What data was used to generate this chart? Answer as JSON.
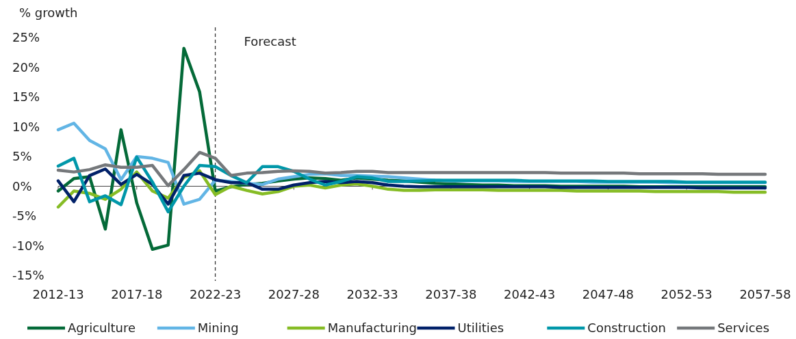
{
  "chart_data": {
    "type": "line",
    "ylabel": "% growth",
    "categories": [
      "2012-13",
      null,
      null,
      null,
      null,
      "2017-18",
      null,
      null,
      null,
      null,
      "2022-23",
      null,
      null,
      null,
      null,
      "2027-28",
      null,
      null,
      null,
      null,
      "2032-33",
      null,
      null,
      null,
      null,
      "2037-38",
      null,
      null,
      null,
      null,
      "2042-43",
      null,
      null,
      null,
      null,
      "2047-48",
      null,
      null,
      null,
      null,
      "2052-53",
      null,
      null,
      null,
      null,
      "2057-58"
    ],
    "series": [
      {
        "name": "Agriculture",
        "color": "#046a38",
        "values": [
          -0.8,
          1.3,
          1.6,
          -7.2,
          9.5,
          -2.8,
          -10.6,
          -9.9,
          23.2,
          15.9,
          -0.8,
          -0.1,
          0.3,
          0.5,
          0.9,
          1.2,
          1.4,
          1.3,
          1.0,
          1.4,
          1.2,
          1.0,
          0.9,
          0.7,
          0.5,
          0.4,
          0.3,
          0.2,
          0.2,
          0.1,
          0.1,
          0.1,
          0.0,
          0.0,
          0.0,
          0.0,
          0.0,
          -0.1,
          -0.1,
          -0.1,
          -0.1,
          -0.1,
          -0.1,
          -0.1,
          -0.1,
          -0.1
        ]
      },
      {
        "name": "Mining",
        "color": "#62b5e5",
        "values": [
          9.5,
          10.6,
          7.7,
          6.3,
          1.1,
          5.0,
          4.7,
          4.0,
          -3.0,
          -2.2,
          1.0,
          0.8,
          0.5,
          0.3,
          1.2,
          1.6,
          2.0,
          2.1,
          1.8,
          1.8,
          1.7,
          1.6,
          1.4,
          1.2,
          1.0,
          0.9,
          0.9,
          0.9,
          0.9,
          0.8,
          0.8,
          0.8,
          0.8,
          0.8,
          0.7,
          0.7,
          0.7,
          0.7,
          0.7,
          0.6,
          0.6,
          0.6,
          0.6,
          0.6,
          0.6,
          0.6
        ]
      },
      {
        "name": "Manufacturing",
        "color": "#86bc25",
        "values": [
          -3.5,
          -0.8,
          -1.2,
          -2.2,
          -0.5,
          2.4,
          -0.8,
          -2.0,
          1.5,
          2.6,
          -1.4,
          0.0,
          -0.7,
          -1.3,
          -0.9,
          0.0,
          0.2,
          -0.3,
          0.2,
          0.4,
          0.0,
          -0.5,
          -0.7,
          -0.7,
          -0.6,
          -0.6,
          -0.6,
          -0.6,
          -0.7,
          -0.7,
          -0.7,
          -0.7,
          -0.7,
          -0.8,
          -0.8,
          -0.8,
          -0.8,
          -0.8,
          -0.9,
          -0.9,
          -0.9,
          -0.9,
          -0.9,
          -1.0,
          -1.0,
          -1.0
        ]
      },
      {
        "name": "Utilities",
        "color": "#012169",
        "values": [
          0.9,
          -2.6,
          1.8,
          2.9,
          0.3,
          2.0,
          0.3,
          -3.0,
          1.8,
          2.2,
          1.1,
          0.6,
          0.6,
          -0.5,
          -0.5,
          0.2,
          0.6,
          0.8,
          0.6,
          0.8,
          0.6,
          0.2,
          0.0,
          -0.1,
          -0.1,
          -0.1,
          -0.1,
          -0.1,
          -0.1,
          -0.1,
          -0.1,
          -0.1,
          -0.2,
          -0.2,
          -0.2,
          -0.2,
          -0.2,
          -0.2,
          -0.2,
          -0.2,
          -0.2,
          -0.3,
          -0.3,
          -0.3,
          -0.3,
          -0.3
        ]
      },
      {
        "name": "Construction",
        "color": "#0097a9",
        "values": [
          3.4,
          4.7,
          -2.6,
          -1.6,
          -3.1,
          4.9,
          0.7,
          -4.3,
          0.0,
          3.5,
          3.3,
          1.8,
          0.6,
          3.3,
          3.3,
          2.5,
          1.2,
          0.2,
          0.8,
          1.6,
          1.4,
          0.8,
          0.8,
          0.9,
          1.0,
          1.0,
          1.0,
          1.0,
          1.0,
          1.0,
          0.9,
          0.9,
          0.9,
          0.9,
          0.9,
          0.8,
          0.8,
          0.8,
          0.8,
          0.8,
          0.7,
          0.7,
          0.7,
          0.7,
          0.7,
          0.7
        ]
      },
      {
        "name": "Services",
        "color": "#75787b",
        "values": [
          2.7,
          2.4,
          2.8,
          3.6,
          3.2,
          3.2,
          3.5,
          0.1,
          2.8,
          5.7,
          4.7,
          1.8,
          2.2,
          2.3,
          2.5,
          2.6,
          2.5,
          2.2,
          2.3,
          2.5,
          2.5,
          2.3,
          2.3,
          2.3,
          2.3,
          2.3,
          2.3,
          2.3,
          2.3,
          2.3,
          2.3,
          2.3,
          2.2,
          2.2,
          2.2,
          2.2,
          2.2,
          2.1,
          2.1,
          2.1,
          2.1,
          2.1,
          2.0,
          2.0,
          2.0,
          2.0
        ]
      }
    ],
    "ylim": [
      -15,
      25
    ],
    "yticks": [
      {
        "value": -15,
        "label": "-15%"
      },
      {
        "value": -10,
        "label": "-10%"
      },
      {
        "value": -5,
        "label": "-5%"
      },
      {
        "value": 0,
        "label": "0%"
      },
      {
        "value": 5,
        "label": "5%"
      },
      {
        "value": 10,
        "label": "10%"
      },
      {
        "value": 15,
        "label": "15%"
      },
      {
        "value": 20,
        "label": "20%"
      },
      {
        "value": 25,
        "label": "25%"
      }
    ],
    "ref_lines": [
      {
        "axis": "x",
        "value": "2022-23",
        "label": "Forecast",
        "color": "#333333",
        "line_style": "dashed"
      }
    ],
    "grid": false,
    "legend": "bottom",
    "marker": "none",
    "line_style": "solid"
  }
}
